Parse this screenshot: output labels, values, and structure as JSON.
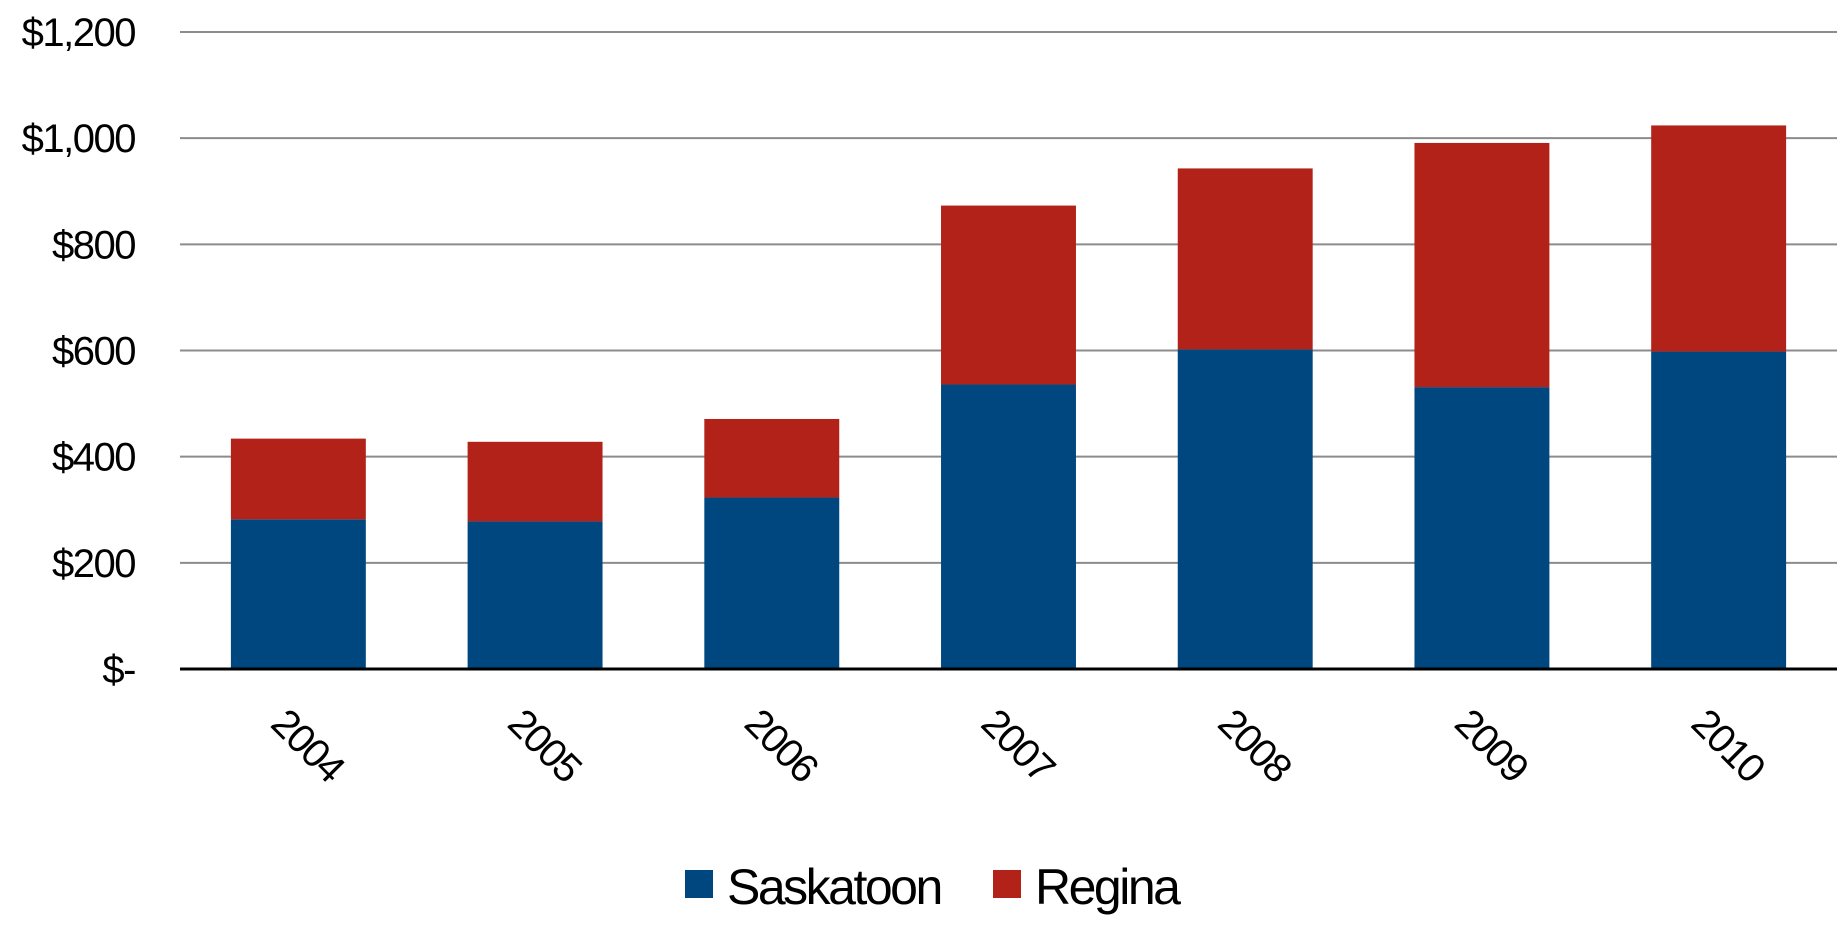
{
  "chart_data": {
    "type": "bar",
    "stacked": true,
    "categories": [
      "2004",
      "2005",
      "2006",
      "2007",
      "2008",
      "2009",
      "2010"
    ],
    "series": [
      {
        "name": "Saskatoon",
        "color": "#00467f",
        "values": [
          282,
          278,
          323,
          536,
          602,
          531,
          598
        ]
      },
      {
        "name": "Regina",
        "color": "#b22219",
        "values": [
          152,
          150,
          148,
          337,
          341,
          460,
          426
        ]
      }
    ],
    "ylim": [
      0,
      1200
    ],
    "yticks": [
      0,
      200,
      400,
      600,
      800,
      1000,
      1200
    ],
    "ytick_labels": [
      "$-",
      "$200",
      "$400",
      "$600",
      "$800",
      "$1,000",
      "$1,200"
    ],
    "grid": true,
    "legend_position": "bottom",
    "title": "",
    "xlabel": "",
    "ylabel": ""
  }
}
